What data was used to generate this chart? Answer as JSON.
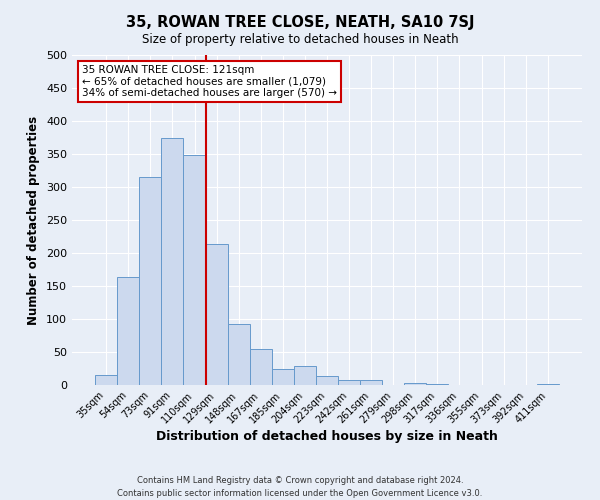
{
  "title": "35, ROWAN TREE CLOSE, NEATH, SA10 7SJ",
  "subtitle": "Size of property relative to detached houses in Neath",
  "xlabel": "Distribution of detached houses by size in Neath",
  "ylabel": "Number of detached properties",
  "bar_labels": [
    "35sqm",
    "54sqm",
    "73sqm",
    "91sqm",
    "110sqm",
    "129sqm",
    "148sqm",
    "167sqm",
    "185sqm",
    "204sqm",
    "223sqm",
    "242sqm",
    "261sqm",
    "279sqm",
    "298sqm",
    "317sqm",
    "336sqm",
    "355sqm",
    "373sqm",
    "392sqm",
    "411sqm"
  ],
  "bar_heights": [
    15,
    163,
    315,
    375,
    348,
    213,
    92,
    55,
    25,
    29,
    14,
    7,
    7,
    0,
    3,
    1,
    0,
    0,
    0,
    0,
    2
  ],
  "bar_color": "#ccd9ee",
  "bar_edge_color": "#6699cc",
  "vline_x_idx": 5,
  "vline_color": "#cc0000",
  "annotation_text": "35 ROWAN TREE CLOSE: 121sqm\n← 65% of detached houses are smaller (1,079)\n34% of semi-detached houses are larger (570) →",
  "annotation_box_color": "#ffffff",
  "annotation_box_edgecolor": "#cc0000",
  "ylim": [
    0,
    500
  ],
  "yticks": [
    0,
    50,
    100,
    150,
    200,
    250,
    300,
    350,
    400,
    450,
    500
  ],
  "footer1": "Contains HM Land Registry data © Crown copyright and database right 2024.",
  "footer2": "Contains public sector information licensed under the Open Government Licence v3.0.",
  "background_color": "#e8eef7",
  "grid_color": "#ffffff"
}
